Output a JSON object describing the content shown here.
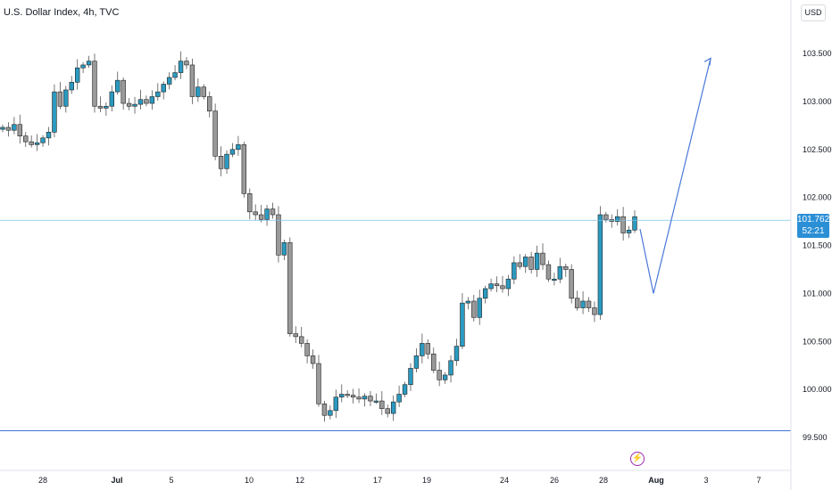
{
  "header": {
    "title": "U.S. Dollar Index, 4h, TVC",
    "currency": "USD"
  },
  "price_tag": {
    "price": "101.762",
    "countdown": "52:21"
  },
  "colors": {
    "up": "#2b9ac0",
    "down": "#9a9a9a",
    "horizontal_line": "#4a78d9",
    "price_line": "#7cc4ec",
    "arrow": "#4a78d9",
    "alert": "#9c27b0"
  },
  "chart_data": {
    "type": "candlestick",
    "title": "U.S. Dollar Index, 4h, TVC",
    "x_ticks": [
      "28",
      "Jul",
      "5",
      "10",
      "12",
      "17",
      "19",
      "24",
      "26",
      "28",
      "Aug",
      "3",
      "7"
    ],
    "y_ticks": [
      "103.500",
      "103.000",
      "102.500",
      "102.000",
      "101.500",
      "101.000",
      "100.500",
      "100.000",
      "99.500"
    ],
    "ylim": [
      99.45,
      103.8
    ],
    "last_price": 101.762,
    "support_level": 99.57,
    "projection": [
      {
        "date": "Jul 30",
        "value": 101.67
      },
      {
        "date": "Aug 1",
        "value": 101.0
      },
      {
        "date": "Aug 3",
        "value": 103.45
      }
    ],
    "close_series": [
      102.73,
      102.7,
      102.76,
      102.64,
      102.58,
      102.55,
      102.57,
      102.62,
      102.68,
      103.1,
      102.95,
      103.12,
      103.2,
      103.35,
      103.38,
      103.42,
      102.95,
      102.93,
      102.95,
      103.1,
      103.22,
      102.98,
      102.95,
      102.97,
      103.02,
      102.98,
      103.05,
      103.1,
      103.18,
      103.25,
      103.3,
      103.42,
      103.38,
      103.05,
      103.15,
      103.05,
      102.9,
      102.43,
      102.3,
      102.45,
      102.5,
      102.55,
      102.04,
      101.85,
      101.82,
      101.77,
      101.88,
      101.82,
      101.4,
      101.53,
      100.58,
      100.55,
      100.48,
      100.35,
      100.27,
      99.85,
      99.73,
      99.78,
      99.92,
      99.95,
      99.94,
      99.92,
      99.9,
      99.93,
      99.88,
      99.88,
      99.8,
      99.75,
      99.87,
      99.95,
      100.05,
      100.22,
      100.35,
      100.48,
      100.37,
      100.2,
      100.1,
      100.15,
      100.3,
      100.45,
      100.9,
      100.92,
      100.75,
      100.95,
      101.05,
      101.1,
      101.08,
      101.05,
      101.15,
      101.32,
      101.28,
      101.38,
      101.25,
      101.42,
      101.3,
      101.15,
      101.15,
      101.28,
      101.25,
      100.95,
      100.85,
      100.92,
      100.85,
      100.78,
      101.82,
      101.77,
      101.75,
      101.8,
      101.63,
      101.66,
      101.8
    ]
  }
}
